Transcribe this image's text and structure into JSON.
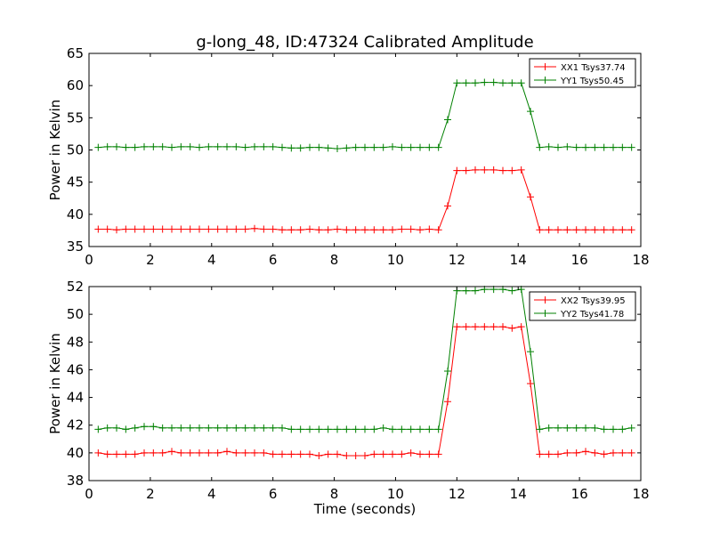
{
  "figure": {
    "title": "g-long_48, ID:47324 Calibrated Amplitude"
  },
  "chart_data": [
    {
      "type": "line",
      "title": "g-long_48, ID:47324 Calibrated Amplitude",
      "xlabel": "",
      "ylabel": "Power in Kelvin",
      "xlim": [
        0,
        18
      ],
      "ylim": [
        35,
        65
      ],
      "xticks": [
        0,
        2,
        4,
        6,
        8,
        10,
        12,
        14,
        16,
        18
      ],
      "yticks": [
        35,
        40,
        45,
        50,
        55,
        60,
        65
      ],
      "legend_position": "top-right",
      "grid": false,
      "x": [
        0.3,
        0.6,
        0.9,
        1.2,
        1.5,
        1.8,
        2.1,
        2.4,
        2.7,
        3.0,
        3.3,
        3.6,
        3.9,
        4.2,
        4.5,
        4.8,
        5.1,
        5.4,
        5.7,
        6.0,
        6.3,
        6.6,
        6.9,
        7.2,
        7.5,
        7.8,
        8.1,
        8.4,
        8.7,
        9.0,
        9.3,
        9.6,
        9.9,
        10.2,
        10.5,
        10.8,
        11.1,
        11.4,
        11.7,
        12.0,
        12.3,
        12.6,
        12.9,
        13.2,
        13.5,
        13.8,
        14.1,
        14.4,
        14.7,
        15.0,
        15.3,
        15.6,
        15.9,
        16.2,
        16.5,
        16.8,
        17.1,
        17.4,
        17.7
      ],
      "series": [
        {
          "name": "XX1 Tsys37.74",
          "color": "#ff0000",
          "values": [
            37.7,
            37.7,
            37.6,
            37.7,
            37.7,
            37.7,
            37.7,
            37.7,
            37.7,
            37.7,
            37.7,
            37.7,
            37.7,
            37.7,
            37.7,
            37.7,
            37.7,
            37.8,
            37.7,
            37.7,
            37.6,
            37.6,
            37.6,
            37.7,
            37.6,
            37.6,
            37.7,
            37.6,
            37.6,
            37.6,
            37.6,
            37.6,
            37.6,
            37.7,
            37.7,
            37.6,
            37.7,
            37.6,
            41.3,
            46.8,
            46.8,
            46.9,
            46.9,
            46.9,
            46.8,
            46.8,
            46.9,
            42.7,
            37.6,
            37.6,
            37.6,
            37.6,
            37.6,
            37.6,
            37.6,
            37.6,
            37.6,
            37.6,
            37.6
          ]
        },
        {
          "name": "YY1 Tsys50.45",
          "color": "#008000",
          "values": [
            50.4,
            50.5,
            50.5,
            50.4,
            50.4,
            50.5,
            50.5,
            50.5,
            50.4,
            50.5,
            50.5,
            50.4,
            50.5,
            50.5,
            50.5,
            50.5,
            50.4,
            50.5,
            50.5,
            50.5,
            50.4,
            50.3,
            50.3,
            50.4,
            50.4,
            50.3,
            50.2,
            50.3,
            50.4,
            50.4,
            50.4,
            50.4,
            50.5,
            50.4,
            50.4,
            50.4,
            50.4,
            50.4,
            54.7,
            60.4,
            60.4,
            60.4,
            60.5,
            60.5,
            60.4,
            60.4,
            60.4,
            56.0,
            50.4,
            50.5,
            50.4,
            50.5,
            50.4,
            50.4,
            50.4,
            50.4,
            50.4,
            50.4,
            50.4
          ]
        }
      ]
    },
    {
      "type": "line",
      "title": "",
      "xlabel": "Time (seconds)",
      "ylabel": "Power in Kelvin",
      "xlim": [
        0,
        18
      ],
      "ylim": [
        38,
        52
      ],
      "xticks": [
        0,
        2,
        4,
        6,
        8,
        10,
        12,
        14,
        16,
        18
      ],
      "yticks": [
        38,
        40,
        42,
        44,
        46,
        48,
        50,
        52
      ],
      "legend_position": "top-right",
      "grid": false,
      "x": [
        0.3,
        0.6,
        0.9,
        1.2,
        1.5,
        1.8,
        2.1,
        2.4,
        2.7,
        3.0,
        3.3,
        3.6,
        3.9,
        4.2,
        4.5,
        4.8,
        5.1,
        5.4,
        5.7,
        6.0,
        6.3,
        6.6,
        6.9,
        7.2,
        7.5,
        7.8,
        8.1,
        8.4,
        8.7,
        9.0,
        9.3,
        9.6,
        9.9,
        10.2,
        10.5,
        10.8,
        11.1,
        11.4,
        11.7,
        12.0,
        12.3,
        12.6,
        12.9,
        13.2,
        13.5,
        13.8,
        14.1,
        14.4,
        14.7,
        15.0,
        15.3,
        15.6,
        15.9,
        16.2,
        16.5,
        16.8,
        17.1,
        17.4,
        17.7
      ],
      "series": [
        {
          "name": "XX2 Tsys39.95",
          "color": "#ff0000",
          "values": [
            40.0,
            39.9,
            39.9,
            39.9,
            39.9,
            40.0,
            40.0,
            40.0,
            40.1,
            40.0,
            40.0,
            40.0,
            40.0,
            40.0,
            40.1,
            40.0,
            40.0,
            40.0,
            40.0,
            39.9,
            39.9,
            39.9,
            39.9,
            39.9,
            39.8,
            39.9,
            39.9,
            39.8,
            39.8,
            39.8,
            39.9,
            39.9,
            39.9,
            39.9,
            40.0,
            39.9,
            39.9,
            39.9,
            43.7,
            49.1,
            49.1,
            49.1,
            49.1,
            49.1,
            49.1,
            49.0,
            49.1,
            45.0,
            39.9,
            39.9,
            39.9,
            40.0,
            40.0,
            40.1,
            40.0,
            39.9,
            40.0,
            40.0,
            40.0
          ]
        },
        {
          "name": "YY2 Tsys41.78",
          "color": "#008000",
          "values": [
            41.7,
            41.8,
            41.8,
            41.7,
            41.8,
            41.9,
            41.9,
            41.8,
            41.8,
            41.8,
            41.8,
            41.8,
            41.8,
            41.8,
            41.8,
            41.8,
            41.8,
            41.8,
            41.8,
            41.8,
            41.8,
            41.7,
            41.7,
            41.7,
            41.7,
            41.7,
            41.7,
            41.7,
            41.7,
            41.7,
            41.7,
            41.8,
            41.7,
            41.7,
            41.7,
            41.7,
            41.7,
            41.7,
            45.9,
            51.7,
            51.7,
            51.7,
            51.8,
            51.8,
            51.8,
            51.7,
            51.8,
            47.3,
            41.7,
            41.8,
            41.8,
            41.8,
            41.8,
            41.8,
            41.8,
            41.7,
            41.7,
            41.7,
            41.8
          ]
        }
      ]
    }
  ]
}
